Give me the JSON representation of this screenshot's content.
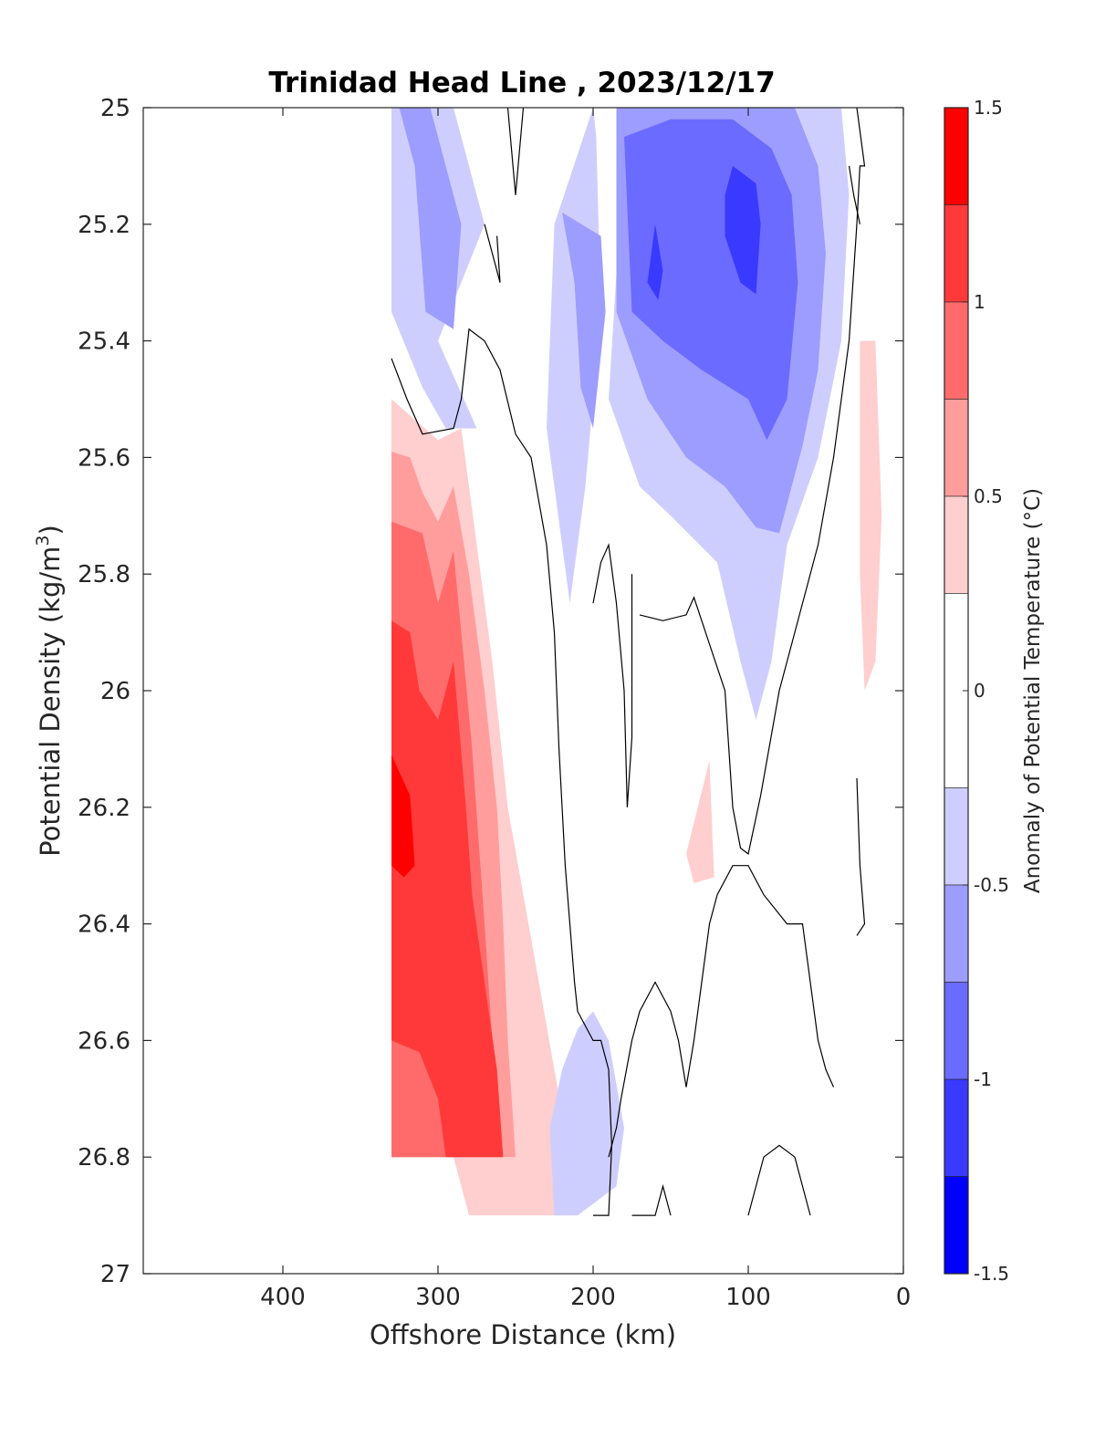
{
  "chart_data": {
    "type": "filled_contour",
    "title": "Trinidad Head Line , 2023/12/17",
    "xlabel": "Offshore Distance (km)",
    "ylabel": "Potential Density (kg/m",
    "ylabel_sup": "3",
    "ylabel_close": ")",
    "xlim": [
      490,
      0
    ],
    "ylim": [
      27,
      25
    ],
    "x_ticks": [
      400,
      300,
      200,
      100,
      0
    ],
    "x_tick_labels": [
      "400",
      "300",
      "200",
      "100",
      "0"
    ],
    "y_ticks": [
      25,
      25.2,
      25.4,
      25.6,
      25.8,
      26,
      26.2,
      26.4,
      26.6,
      26.8,
      27
    ],
    "y_tick_labels": [
      "25",
      "25.2",
      "25.4",
      "25.6",
      "25.8",
      "26",
      "26.2",
      "26.4",
      "26.6",
      "26.8",
      "27"
    ],
    "colorbar": {
      "label": "Anomaly of Potential Temperature (°C)",
      "range": [
        -1.5,
        1.5
      ],
      "ticks": [
        1.5,
        1,
        0.5,
        0,
        -0.5,
        -1,
        -1.5
      ],
      "tick_labels": [
        "1.5",
        "1",
        "0.5",
        "0",
        "-0.5",
        "-1",
        "-1.5"
      ],
      "levels": [
        {
          "range": [
            1.25,
            1.5
          ],
          "color": "#ff0000"
        },
        {
          "range": [
            1.0,
            1.25
          ],
          "color": "#ff3939"
        },
        {
          "range": [
            0.75,
            1.0
          ],
          "color": "#ff6b6b"
        },
        {
          "range": [
            0.5,
            0.75
          ],
          "color": "#ff9d9d"
        },
        {
          "range": [
            0.25,
            0.5
          ],
          "color": "#ffcece"
        },
        {
          "range": [
            -0.25,
            0.25
          ],
          "color": "#ffffff"
        },
        {
          "range": [
            -0.5,
            -0.25
          ],
          "color": "#cecefe"
        },
        {
          "range": [
            -0.75,
            -0.5
          ],
          "color": "#9d9dff"
        },
        {
          "range": [
            -1.0,
            -0.75
          ],
          "color": "#6b6bff"
        },
        {
          "range": [
            -1.25,
            -1.0
          ],
          "color": "#3939ff"
        },
        {
          "range": [
            -1.5,
            -1.25
          ],
          "color": "#0000ff"
        }
      ]
    },
    "anomaly_regions": [
      {
        "level": 0.375,
        "color": "#ffcece",
        "points": [
          [
            330,
            25.5
          ],
          [
            300,
            25.57
          ],
          [
            285,
            25.55
          ],
          [
            275,
            25.75
          ],
          [
            265,
            25.95
          ],
          [
            255,
            26.2
          ],
          [
            245,
            26.35
          ],
          [
            235,
            26.5
          ],
          [
            225,
            26.65
          ],
          [
            215,
            26.8
          ],
          [
            210,
            26.9
          ],
          [
            280,
            26.9
          ],
          [
            290,
            26.8
          ],
          [
            330,
            26.8
          ]
        ]
      },
      {
        "level": 0.625,
        "color": "#ff9d9d",
        "points": [
          [
            330,
            25.59
          ],
          [
            318,
            25.6
          ],
          [
            310,
            25.66
          ],
          [
            300,
            25.71
          ],
          [
            290,
            25.65
          ],
          [
            280,
            25.8
          ],
          [
            270,
            26.0
          ],
          [
            262,
            26.2
          ],
          [
            258,
            26.4
          ],
          [
            255,
            26.6
          ],
          [
            250,
            26.8
          ],
          [
            295,
            26.8
          ],
          [
            330,
            26.8
          ]
        ]
      },
      {
        "level": 0.875,
        "color": "#ff6b6b",
        "points": [
          [
            330,
            25.71
          ],
          [
            310,
            25.73
          ],
          [
            300,
            25.85
          ],
          [
            290,
            25.76
          ],
          [
            285,
            25.9
          ],
          [
            278,
            26.1
          ],
          [
            270,
            26.4
          ],
          [
            265,
            26.6
          ],
          [
            262,
            26.8
          ],
          [
            330,
            26.8
          ]
        ]
      },
      {
        "level": 1.125,
        "color": "#ff3939",
        "points": [
          [
            330,
            25.88
          ],
          [
            318,
            25.9
          ],
          [
            312,
            26.0
          ],
          [
            300,
            26.05
          ],
          [
            290,
            25.95
          ],
          [
            282,
            26.2
          ],
          [
            278,
            26.35
          ],
          [
            270,
            26.5
          ],
          [
            262,
            26.65
          ],
          [
            258,
            26.8
          ],
          [
            295,
            26.8
          ],
          [
            300,
            26.7
          ],
          [
            312,
            26.62
          ],
          [
            330,
            26.6
          ]
        ]
      },
      {
        "level": 1.375,
        "color": "#ff0000",
        "points": [
          [
            330,
            26.11
          ],
          [
            318,
            26.18
          ],
          [
            315,
            26.3
          ],
          [
            322,
            26.32
          ],
          [
            330,
            26.3
          ]
        ]
      },
      {
        "level": 0.375,
        "color": "#ffcece",
        "points": [
          [
            140,
            26.28
          ],
          [
            125,
            26.12
          ],
          [
            122,
            26.32
          ],
          [
            135,
            26.33
          ]
        ]
      },
      {
        "level": 0.375,
        "color": "#ffcece",
        "points": [
          [
            18,
            25.4
          ],
          [
            14,
            25.7
          ],
          [
            18,
            25.95
          ],
          [
            25,
            26.0
          ],
          [
            28,
            25.8
          ],
          [
            28,
            25.4
          ]
        ]
      },
      {
        "level": -0.375,
        "color": "#cecefe",
        "points": [
          [
            330,
            25
          ],
          [
            290,
            25
          ],
          [
            270,
            25.2
          ],
          [
            300,
            25.4
          ],
          [
            275,
            25.55
          ],
          [
            295,
            25.55
          ],
          [
            310,
            25.48
          ],
          [
            330,
            25.35
          ]
        ]
      },
      {
        "level": -0.625,
        "color": "#9d9dff",
        "points": [
          [
            325,
            25
          ],
          [
            315,
            25.1
          ],
          [
            310,
            25.28
          ],
          [
            308,
            25.35
          ],
          [
            290,
            25.38
          ],
          [
            285,
            25.2
          ],
          [
            300,
            25.05
          ],
          [
            305,
            25
          ]
        ]
      },
      {
        "level": -0.375,
        "color": "#cecefe",
        "points": [
          [
            200,
            25
          ],
          [
            225,
            25.2
          ],
          [
            230,
            25.55
          ],
          [
            215,
            25.85
          ],
          [
            205,
            25.65
          ],
          [
            195,
            25.35
          ],
          [
            198,
            25.05
          ]
        ]
      },
      {
        "level": -0.625,
        "color": "#9d9dff",
        "points": [
          [
            220,
            25.18
          ],
          [
            212,
            25.3
          ],
          [
            208,
            25.48
          ],
          [
            200,
            25.55
          ],
          [
            192,
            25.35
          ],
          [
            195,
            25.22
          ]
        ]
      },
      {
        "level": -0.375,
        "color": "#cecefe",
        "points": [
          [
            185,
            25
          ],
          [
            40,
            25
          ],
          [
            35,
            25.15
          ],
          [
            40,
            25.4
          ],
          [
            55,
            25.6
          ],
          [
            75,
            25.75
          ],
          [
            85,
            25.95
          ],
          [
            95,
            26.05
          ],
          [
            105,
            25.95
          ],
          [
            120,
            25.78
          ],
          [
            150,
            25.7
          ],
          [
            170,
            25.65
          ],
          [
            190,
            25.5
          ],
          [
            183,
            25.2
          ]
        ]
      },
      {
        "level": -0.625,
        "color": "#9d9dff",
        "points": [
          [
            185,
            25
          ],
          [
            70,
            25
          ],
          [
            55,
            25.1
          ],
          [
            50,
            25.25
          ],
          [
            55,
            25.45
          ],
          [
            65,
            25.58
          ],
          [
            80,
            25.73
          ],
          [
            95,
            25.72
          ],
          [
            115,
            25.65
          ],
          [
            140,
            25.6
          ],
          [
            165,
            25.5
          ],
          [
            185,
            25.35
          ]
        ]
      },
      {
        "level": -0.875,
        "color": "#6b6bff",
        "points": [
          [
            180,
            25.05
          ],
          [
            150,
            25.02
          ],
          [
            110,
            25.02
          ],
          [
            85,
            25.07
          ],
          [
            72,
            25.15
          ],
          [
            68,
            25.3
          ],
          [
            75,
            25.5
          ],
          [
            88,
            25.57
          ],
          [
            100,
            25.5
          ],
          [
            130,
            25.45
          ],
          [
            155,
            25.4
          ],
          [
            175,
            25.35
          ]
        ]
      },
      {
        "level": -1.125,
        "color": "#3939ff",
        "points": [
          [
            110,
            25.1
          ],
          [
            95,
            25.13
          ],
          [
            92,
            25.2
          ],
          [
            95,
            25.32
          ],
          [
            105,
            25.3
          ],
          [
            115,
            25.22
          ],
          [
            115,
            25.15
          ]
        ]
      },
      {
        "level": -1.125,
        "color": "#3939ff",
        "points": [
          [
            160,
            25.2
          ],
          [
            155,
            25.28
          ],
          [
            158,
            25.33
          ],
          [
            165,
            25.3
          ]
        ]
      },
      {
        "level": -0.375,
        "color": "#cecefe",
        "points": [
          [
            200,
            26.55
          ],
          [
            190,
            26.6
          ],
          [
            180,
            26.75
          ],
          [
            185,
            26.85
          ],
          [
            210,
            26.9
          ],
          [
            225,
            26.9
          ],
          [
            228,
            26.75
          ],
          [
            220,
            26.65
          ],
          [
            210,
            26.58
          ]
        ]
      }
    ],
    "zero_contours": [
      [
        [
          330,
          25.43
        ],
        [
          320,
          25.5
        ],
        [
          310,
          25.56
        ],
        [
          290,
          25.55
        ],
        [
          285,
          25.5
        ],
        [
          280,
          25.38
        ],
        [
          270,
          25.4
        ],
        [
          260,
          25.45
        ],
        [
          250,
          25.56
        ],
        [
          240,
          25.6
        ],
        [
          230,
          25.75
        ],
        [
          225,
          25.9
        ],
        [
          222,
          26.1
        ],
        [
          218,
          26.3
        ],
        [
          212,
          26.5
        ],
        [
          210,
          26.55
        ],
        [
          200,
          26.6
        ],
        [
          195,
          26.6
        ],
        [
          190,
          26.65
        ],
        [
          188,
          26.78
        ],
        [
          190,
          26.9
        ],
        [
          200,
          26.9
        ]
      ],
      [
        [
          255,
          25
        ],
        [
          250,
          25.15
        ],
        [
          245,
          25
        ]
      ],
      [
        [
          270,
          25.2
        ],
        [
          260,
          25.3
        ],
        [
          262,
          25.22
        ]
      ],
      [
        [
          200,
          25.85
        ],
        [
          195,
          25.78
        ],
        [
          190,
          25.75
        ],
        [
          185,
          25.85
        ],
        [
          180,
          26.0
        ],
        [
          178,
          26.2
        ],
        [
          175,
          26.08
        ],
        [
          175,
          25.8
        ]
      ],
      [
        [
          170,
          25.87
        ],
        [
          155,
          25.88
        ],
        [
          140,
          25.87
        ],
        [
          135,
          25.84
        ],
        [
          125,
          25.92
        ],
        [
          115,
          26.0
        ],
        [
          110,
          26.2
        ],
        [
          105,
          26.27
        ],
        [
          100,
          26.28
        ],
        [
          92,
          26.18
        ],
        [
          80,
          26.0
        ],
        [
          70,
          25.9
        ],
        [
          55,
          25.75
        ],
        [
          45,
          25.6
        ],
        [
          35,
          25.4
        ],
        [
          30,
          25.2
        ],
        [
          28,
          25.1
        ],
        [
          25,
          25.1
        ],
        [
          30,
          25
        ]
      ],
      [
        [
          190,
          26.8
        ],
        [
          185,
          26.75
        ],
        [
          182,
          26.7
        ],
        [
          175,
          26.6
        ],
        [
          170,
          26.55
        ],
        [
          160,
          26.5
        ],
        [
          150,
          26.55
        ],
        [
          145,
          26.6
        ],
        [
          140,
          26.68
        ],
        [
          135,
          26.6
        ],
        [
          130,
          26.5
        ],
        [
          125,
          26.4
        ],
        [
          120,
          26.35
        ],
        [
          110,
          26.3
        ],
        [
          100,
          26.3
        ],
        [
          90,
          26.35
        ],
        [
          75,
          26.4
        ],
        [
          65,
          26.4
        ],
        [
          55,
          26.6
        ],
        [
          50,
          26.65
        ],
        [
          45,
          26.68
        ]
      ],
      [
        [
          175,
          26.9
        ],
        [
          160,
          26.9
        ],
        [
          155,
          26.85
        ],
        [
          150,
          26.9
        ]
      ],
      [
        [
          100,
          26.9
        ],
        [
          90,
          26.8
        ],
        [
          80,
          26.78
        ],
        [
          70,
          26.8
        ],
        [
          60,
          26.9
        ]
      ],
      [
        [
          30,
          26.15
        ],
        [
          28,
          26.3
        ],
        [
          25,
          26.4
        ],
        [
          30,
          26.42
        ]
      ],
      [
        [
          35,
          25.1
        ],
        [
          32,
          25.15
        ],
        [
          28,
          25.2
        ]
      ]
    ]
  }
}
